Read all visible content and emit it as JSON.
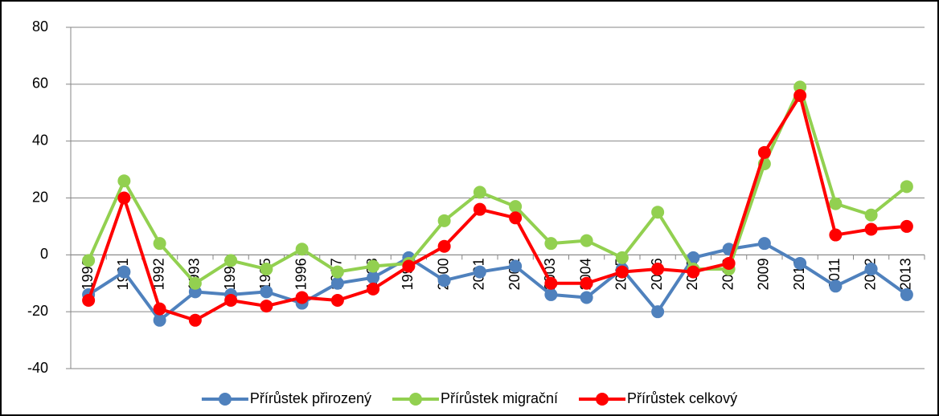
{
  "chart_data": {
    "type": "line",
    "categories": [
      "1990",
      "1991",
      "1992",
      "1993",
      "1994",
      "1995",
      "1996",
      "1997",
      "1998",
      "1999",
      "2000",
      "2001",
      "2002",
      "2003",
      "2004",
      "2005",
      "2006",
      "2007",
      "2008",
      "2009",
      "2010",
      "2011",
      "2012",
      "2013"
    ],
    "series": [
      {
        "name": "Přírůstek přirozený",
        "color": "#4f81bd",
        "values": [
          -14,
          -6,
          -23,
          -13,
          -14,
          -13,
          -17,
          -10,
          -8,
          -1,
          -9,
          -6,
          -4,
          -14,
          -15,
          -5,
          -20,
          -1,
          2,
          4,
          -3,
          -11,
          -5,
          -14
        ]
      },
      {
        "name": "Přírůstek migrační",
        "color": "#92d050",
        "values": [
          -2,
          26,
          4,
          -10,
          -2,
          -5,
          2,
          -6,
          -4,
          -3,
          12,
          22,
          17,
          4,
          5,
          -1,
          15,
          -5,
          -5,
          32,
          59,
          18,
          14,
          24
        ]
      },
      {
        "name": "Přírůstek celkový",
        "color": "#ff0000",
        "values": [
          -16,
          20,
          -19,
          -23,
          -16,
          -18,
          -15,
          -16,
          -12,
          -4,
          3,
          16,
          13,
          -10,
          -10,
          -6,
          -5,
          -6,
          -3,
          36,
          56,
          7,
          9,
          10
        ]
      }
    ],
    "ylim": [
      -40,
      80
    ],
    "yticks": [
      -40,
      -20,
      0,
      20,
      40,
      60,
      80
    ],
    "grid": true,
    "legend": "bottom"
  }
}
